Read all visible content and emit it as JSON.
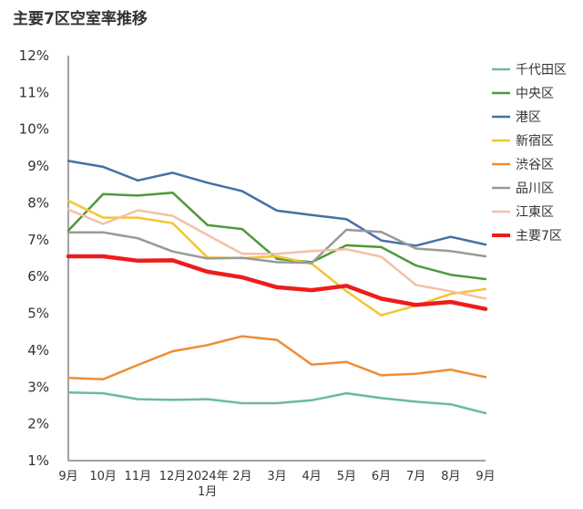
{
  "chart_data": {
    "type": "line",
    "title": "主要7区空室率推移",
    "xlabel": "",
    "ylabel": "",
    "ylim": [
      1,
      12
    ],
    "y_ticks": [
      "12%",
      "11%",
      "10%",
      "9%",
      "8%",
      "7%",
      "6%",
      "5%",
      "4%",
      "3%",
      "2%",
      "1%"
    ],
    "categories": [
      "9月",
      "10月",
      "11月",
      "12月",
      "2024年1月",
      "2月",
      "3月",
      "4月",
      "5月",
      "6月",
      "7月",
      "8月",
      "9月"
    ],
    "x_tick_lines": [
      [
        "9月"
      ],
      [
        "10月"
      ],
      [
        "11月"
      ],
      [
        "12月"
      ],
      [
        "2024年",
        "1月"
      ],
      [
        "2月"
      ],
      [
        "3月"
      ],
      [
        "4月"
      ],
      [
        "5月"
      ],
      [
        "6月"
      ],
      [
        "7月"
      ],
      [
        "8月"
      ],
      [
        "9月"
      ]
    ],
    "legend_position": "right",
    "grid": false,
    "series": [
      {
        "name": "千代田区",
        "color": "#6cb8a8",
        "width": 2.5,
        "values": [
          2.85,
          2.83,
          2.67,
          2.65,
          2.67,
          2.56,
          2.56,
          2.64,
          2.83,
          2.7,
          2.6,
          2.53,
          2.29
        ]
      },
      {
        "name": "中央区",
        "color": "#4e9a3a",
        "width": 2.5,
        "values": [
          7.25,
          8.24,
          8.2,
          8.28,
          7.4,
          7.29,
          6.48,
          6.39,
          6.85,
          6.8,
          6.3,
          6.05,
          5.93
        ]
      },
      {
        "name": "港区",
        "color": "#4670a6",
        "width": 2.5,
        "values": [
          9.14,
          8.98,
          8.61,
          8.82,
          8.55,
          8.32,
          7.79,
          7.67,
          7.56,
          6.98,
          6.84,
          7.08,
          6.87
        ]
      },
      {
        "name": "新宿区",
        "color": "#f2c531",
        "width": 2.5,
        "values": [
          8.06,
          7.6,
          7.6,
          7.45,
          6.52,
          6.5,
          6.55,
          6.35,
          5.6,
          4.95,
          5.21,
          5.53,
          5.66
        ]
      },
      {
        "name": "渋谷区",
        "color": "#ee8d34",
        "width": 2.5,
        "values": [
          3.25,
          3.21,
          3.6,
          3.97,
          4.14,
          4.38,
          4.28,
          3.61,
          3.68,
          3.32,
          3.36,
          3.47,
          3.27
        ]
      },
      {
        "name": "品川区",
        "color": "#999999",
        "width": 2.5,
        "values": [
          7.2,
          7.2,
          7.04,
          6.68,
          6.49,
          6.51,
          6.39,
          6.37,
          7.27,
          7.21,
          6.76,
          6.69,
          6.55
        ]
      },
      {
        "name": "江東区",
        "color": "#f4c0a8",
        "width": 2.5,
        "values": [
          7.82,
          7.43,
          7.8,
          7.65,
          7.13,
          6.62,
          6.62,
          6.69,
          6.74,
          6.54,
          5.77,
          5.6,
          5.4
        ]
      },
      {
        "name": "主要7区",
        "color": "#ee1c1c",
        "width": 4.5,
        "values": [
          6.55,
          6.55,
          6.43,
          6.44,
          6.13,
          5.98,
          5.71,
          5.63,
          5.75,
          5.4,
          5.23,
          5.31,
          5.12
        ]
      }
    ]
  }
}
